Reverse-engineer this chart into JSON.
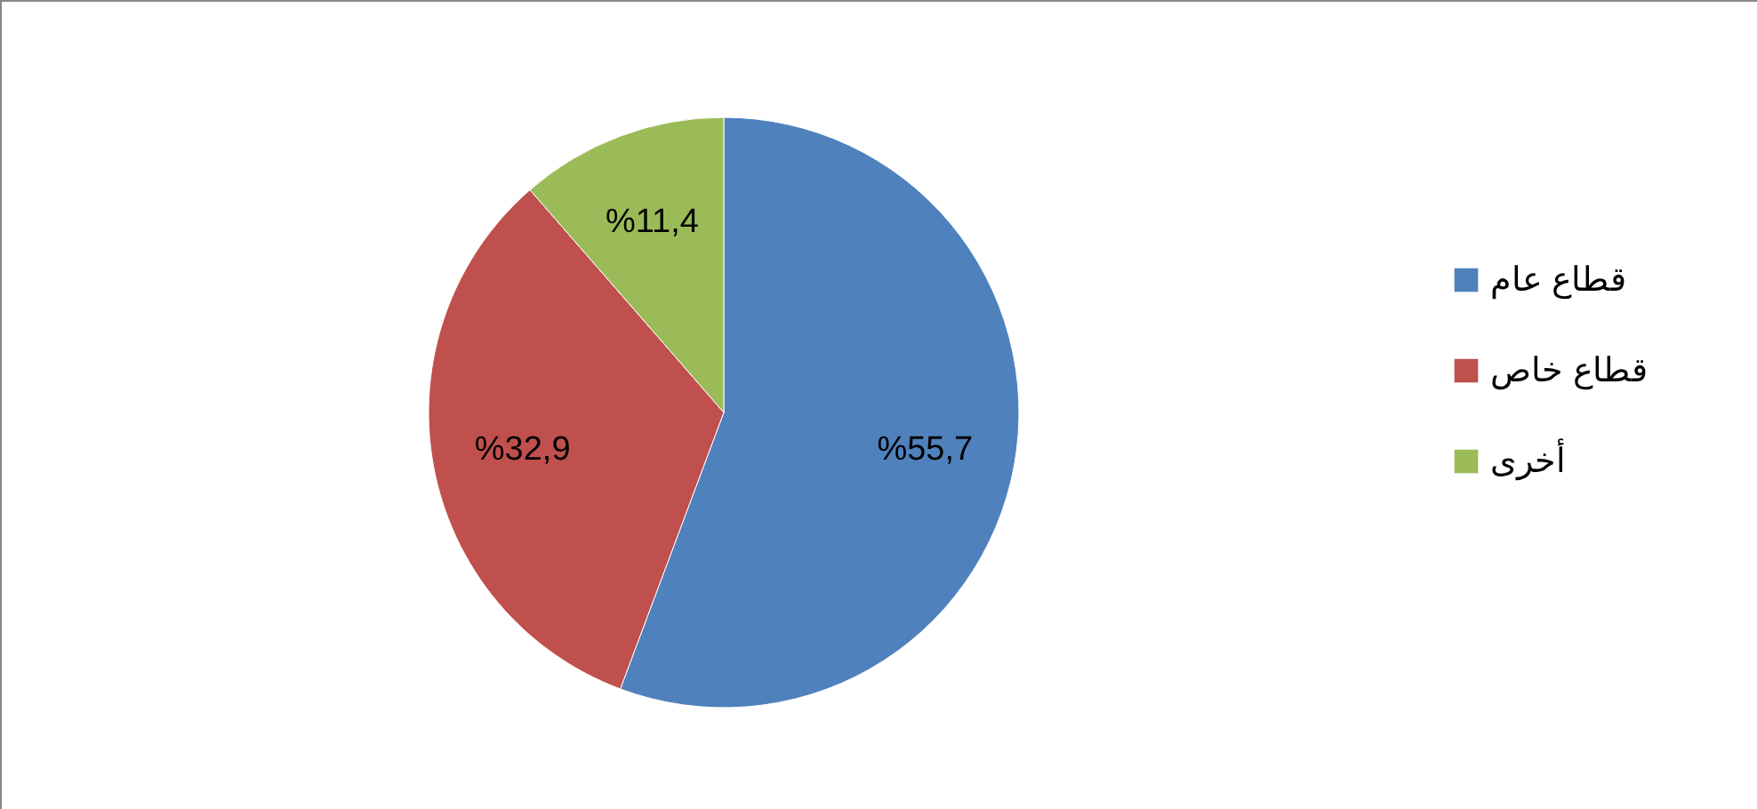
{
  "chart_data": {
    "type": "pie",
    "categories": [
      "قطاع عام",
      "قطاع خاص",
      "أخرى"
    ],
    "values": [
      55.7,
      32.9,
      11.4
    ],
    "colors": [
      "#4f81bd",
      "#c0504d",
      "#9bbb59"
    ],
    "value_labels": [
      "%55,7",
      "%32,9",
      "%11,4"
    ],
    "legend": "right"
  }
}
